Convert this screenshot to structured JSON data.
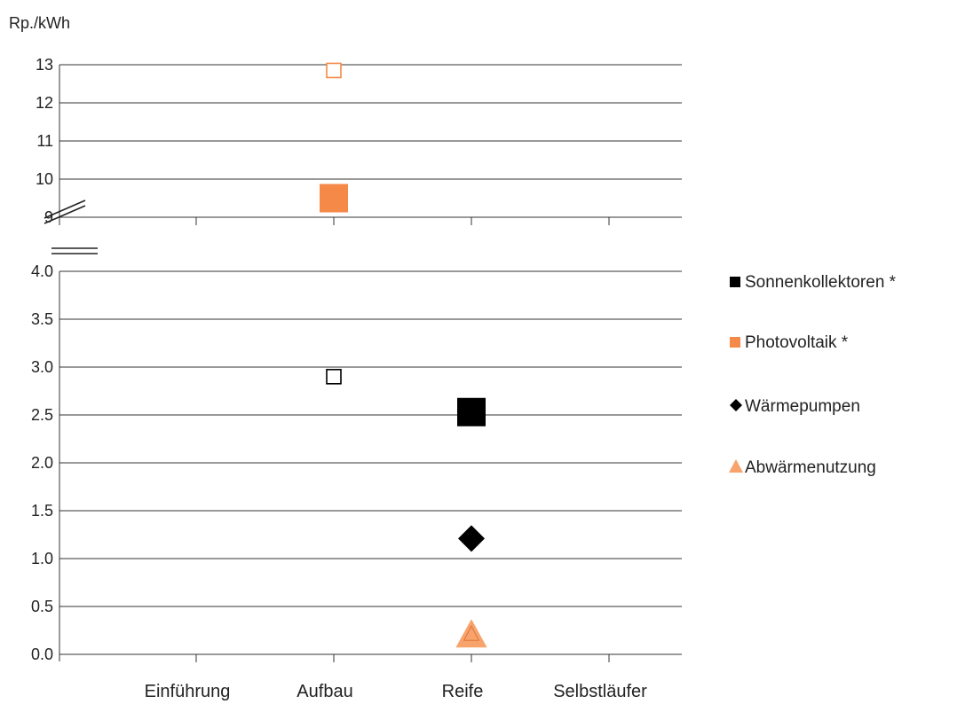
{
  "chart_data": {
    "type": "scatter",
    "unit_label": "Rp./kWh",
    "categories": [
      "Einführung",
      "Aufbau",
      "Reife",
      "Selbstläufer"
    ],
    "upper_axis": {
      "ylim": [
        9,
        13
      ],
      "ticks": [
        "9",
        "10",
        "11",
        "12",
        "13"
      ]
    },
    "lower_axis": {
      "ylim": [
        0,
        4
      ],
      "ticks": [
        "0.0",
        "0.5",
        "1.0",
        "1.5",
        "2.0",
        "2.5",
        "3.0",
        "3.5",
        "4.0"
      ]
    },
    "axis_break": true,
    "grid": true,
    "legend_position": "right",
    "series": [
      {
        "name": "Sonnenkollektoren *",
        "color": "#000000",
        "marker": "square",
        "points": [
          {
            "x": "Aufbau",
            "y": 2.9,
            "hollow": true
          },
          {
            "x": "Reife",
            "y": 2.53,
            "hollow": false
          }
        ]
      },
      {
        "name": "Photovoltaik *",
        "color": "#f58a48",
        "marker": "square",
        "points": [
          {
            "x": "Aufbau",
            "y": 12.85,
            "hollow": true
          },
          {
            "x": "Aufbau",
            "y": 9.5,
            "hollow": false
          }
        ]
      },
      {
        "name": "Wärmepumpen",
        "color": "#000000",
        "marker": "diamond",
        "points": [
          {
            "x": "Reife",
            "y": 1.21,
            "hollow": false
          }
        ]
      },
      {
        "name": "Abwärmenutzung",
        "color": "#f7a36b",
        "marker": "triangle",
        "points": [
          {
            "x": "Reife",
            "y": 0.22,
            "hollow": false
          }
        ]
      }
    ]
  }
}
